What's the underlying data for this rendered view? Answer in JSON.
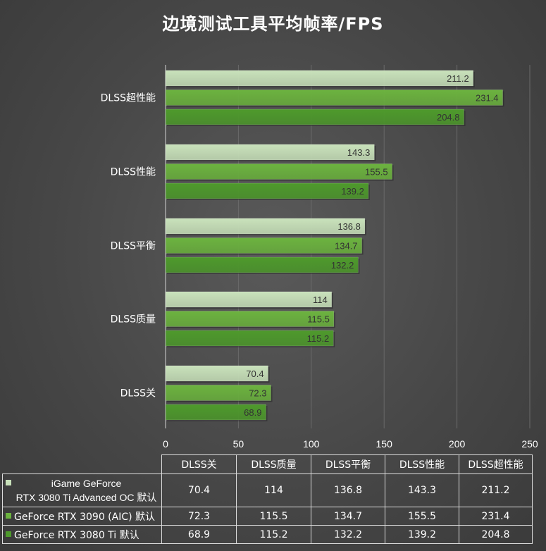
{
  "chart_data": {
    "type": "bar",
    "orientation": "horizontal",
    "title": "边境测试工具平均帧率/FPS",
    "categories": [
      "DLSS超性能",
      "DLSS性能",
      "DLSS平衡",
      "DLSS质量",
      "DLSS关"
    ],
    "series": [
      {
        "name": "iGame GeForce RTX 3080 Ti Advanced OC 默认",
        "name_lines": [
          "iGame GeForce",
          "RTX 3080 Ti Advanced OC 默认"
        ],
        "color": "#c9e2bb",
        "values": [
          211.2,
          143.3,
          136.8,
          114,
          70.4
        ]
      },
      {
        "name": "GeForce RTX 3090 (AIC) 默认",
        "color": "#6cb33f",
        "values": [
          231.4,
          155.5,
          134.7,
          115.5,
          72.3
        ]
      },
      {
        "name": "GeForce RTX 3080 Ti 默认",
        "color": "#4e9a2c",
        "values": [
          204.8,
          139.2,
          132.2,
          115.2,
          68.9
        ]
      }
    ],
    "value_labels": [
      [
        "211.2",
        "143.3",
        "136.8",
        "114",
        "70.4"
      ],
      [
        "231.4",
        "155.5",
        "134.7",
        "115.5",
        "72.3"
      ],
      [
        "204.8",
        "139.2",
        "132.2",
        "115.2",
        "68.9"
      ]
    ],
    "xlim": [
      0,
      250
    ],
    "xticks": [
      0,
      50,
      100,
      150,
      200,
      250
    ],
    "xtick_labels": [
      "0",
      "50",
      "100",
      "150",
      "200",
      "250"
    ],
    "grid": true,
    "legend": "data-table-below"
  },
  "table": {
    "columns": [
      "DLSS关",
      "DLSS质量",
      "DLSS平衡",
      "DLSS性能",
      "DLSS超性能"
    ],
    "rows": [
      [
        "70.4",
        "114",
        "136.8",
        "143.3",
        "211.2"
      ],
      [
        "72.3",
        "115.5",
        "134.7",
        "155.5",
        "231.4"
      ],
      [
        "68.9",
        "115.2",
        "132.2",
        "139.2",
        "204.8"
      ]
    ]
  }
}
